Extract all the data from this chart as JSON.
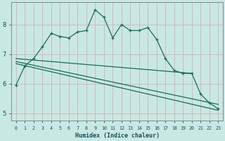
{
  "xlabel": "Humidex (Indice chaleur)",
  "background_color": "#c8e8e4",
  "grid_color": "#d8b0b0",
  "line_color": "#1a6b5a",
  "xlim": [
    -0.5,
    23.5
  ],
  "ylim": [
    4.75,
    8.75
  ],
  "xticks": [
    0,
    1,
    2,
    3,
    4,
    5,
    6,
    7,
    8,
    9,
    10,
    11,
    12,
    13,
    14,
    15,
    16,
    17,
    18,
    19,
    20,
    21,
    22,
    23
  ],
  "yticks": [
    5,
    6,
    7,
    8
  ],
  "line1_x": [
    0,
    1,
    2,
    3,
    4,
    5,
    6,
    7,
    8,
    9,
    10,
    11,
    12,
    13,
    14,
    15,
    16,
    17,
    18,
    19,
    20,
    21,
    22,
    23
  ],
  "line1_y": [
    5.95,
    6.6,
    6.85,
    7.25,
    7.7,
    7.6,
    7.55,
    7.75,
    7.8,
    8.5,
    8.25,
    7.55,
    8.0,
    7.8,
    7.8,
    7.9,
    7.5,
    6.85,
    6.45,
    6.35,
    6.35,
    5.65,
    5.35,
    5.15
  ],
  "line2_x": [
    0,
    20
  ],
  "line2_y": [
    6.85,
    6.35
  ],
  "line3_x": [
    0,
    23
  ],
  "line3_y": [
    6.75,
    5.3
  ],
  "line4_x": [
    0,
    23
  ],
  "line4_y": [
    6.68,
    5.1
  ]
}
